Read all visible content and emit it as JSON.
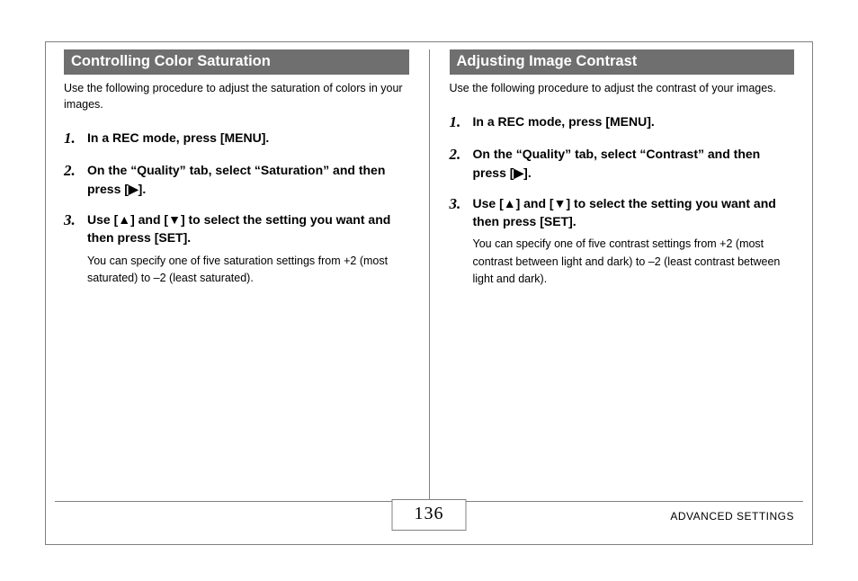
{
  "colors": {
    "header_bg": "#6f6f6f",
    "header_text": "#ffffff",
    "text": "#000000",
    "border": "#808080",
    "background": "#ffffff"
  },
  "typography": {
    "body_family": "Arial, Helvetica, sans-serif",
    "serif_family": "Georgia, 'Times New Roman', serif",
    "header_size_pt": 12,
    "intro_size_pt": 9,
    "step_text_size_pt": 11,
    "step_num_size_pt": 13,
    "page_num_size_pt": 15,
    "footer_label_size_pt": 9
  },
  "left": {
    "header": "Controlling Color Saturation",
    "intro": "Use the following procedure to adjust the saturation of colors in your images.",
    "steps": [
      {
        "num": "1.",
        "text": "In a REC mode, press [MENU].",
        "sub": null
      },
      {
        "num": "2.",
        "text": "On the “Quality” tab, select “Saturation” and then press [▶].",
        "sub": null
      },
      {
        "num": "3.",
        "text": "Use [▲] and [▼] to select the setting you want and then press [SET].",
        "sub": "You can specify one of five saturation settings from +2 (most saturated) to –2 (least saturated)."
      }
    ]
  },
  "right": {
    "header": "Adjusting Image Contrast",
    "intro": "Use the following procedure to adjust the contrast of your images.",
    "steps": [
      {
        "num": "1.",
        "text": "In a REC mode, press [MENU].",
        "sub": null
      },
      {
        "num": "2.",
        "text": "On the “Quality” tab, select “Contrast” and then press [▶].",
        "sub": null
      },
      {
        "num": "3.",
        "text": "Use [▲] and [▼] to select the setting you want and then press [SET].",
        "sub": "You can specify one of five contrast settings from +2 (most contrast between light and dark) to –2 (least contrast between light and dark)."
      }
    ]
  },
  "footer": {
    "page_number": "136",
    "label": "ADVANCED SETTINGS"
  }
}
